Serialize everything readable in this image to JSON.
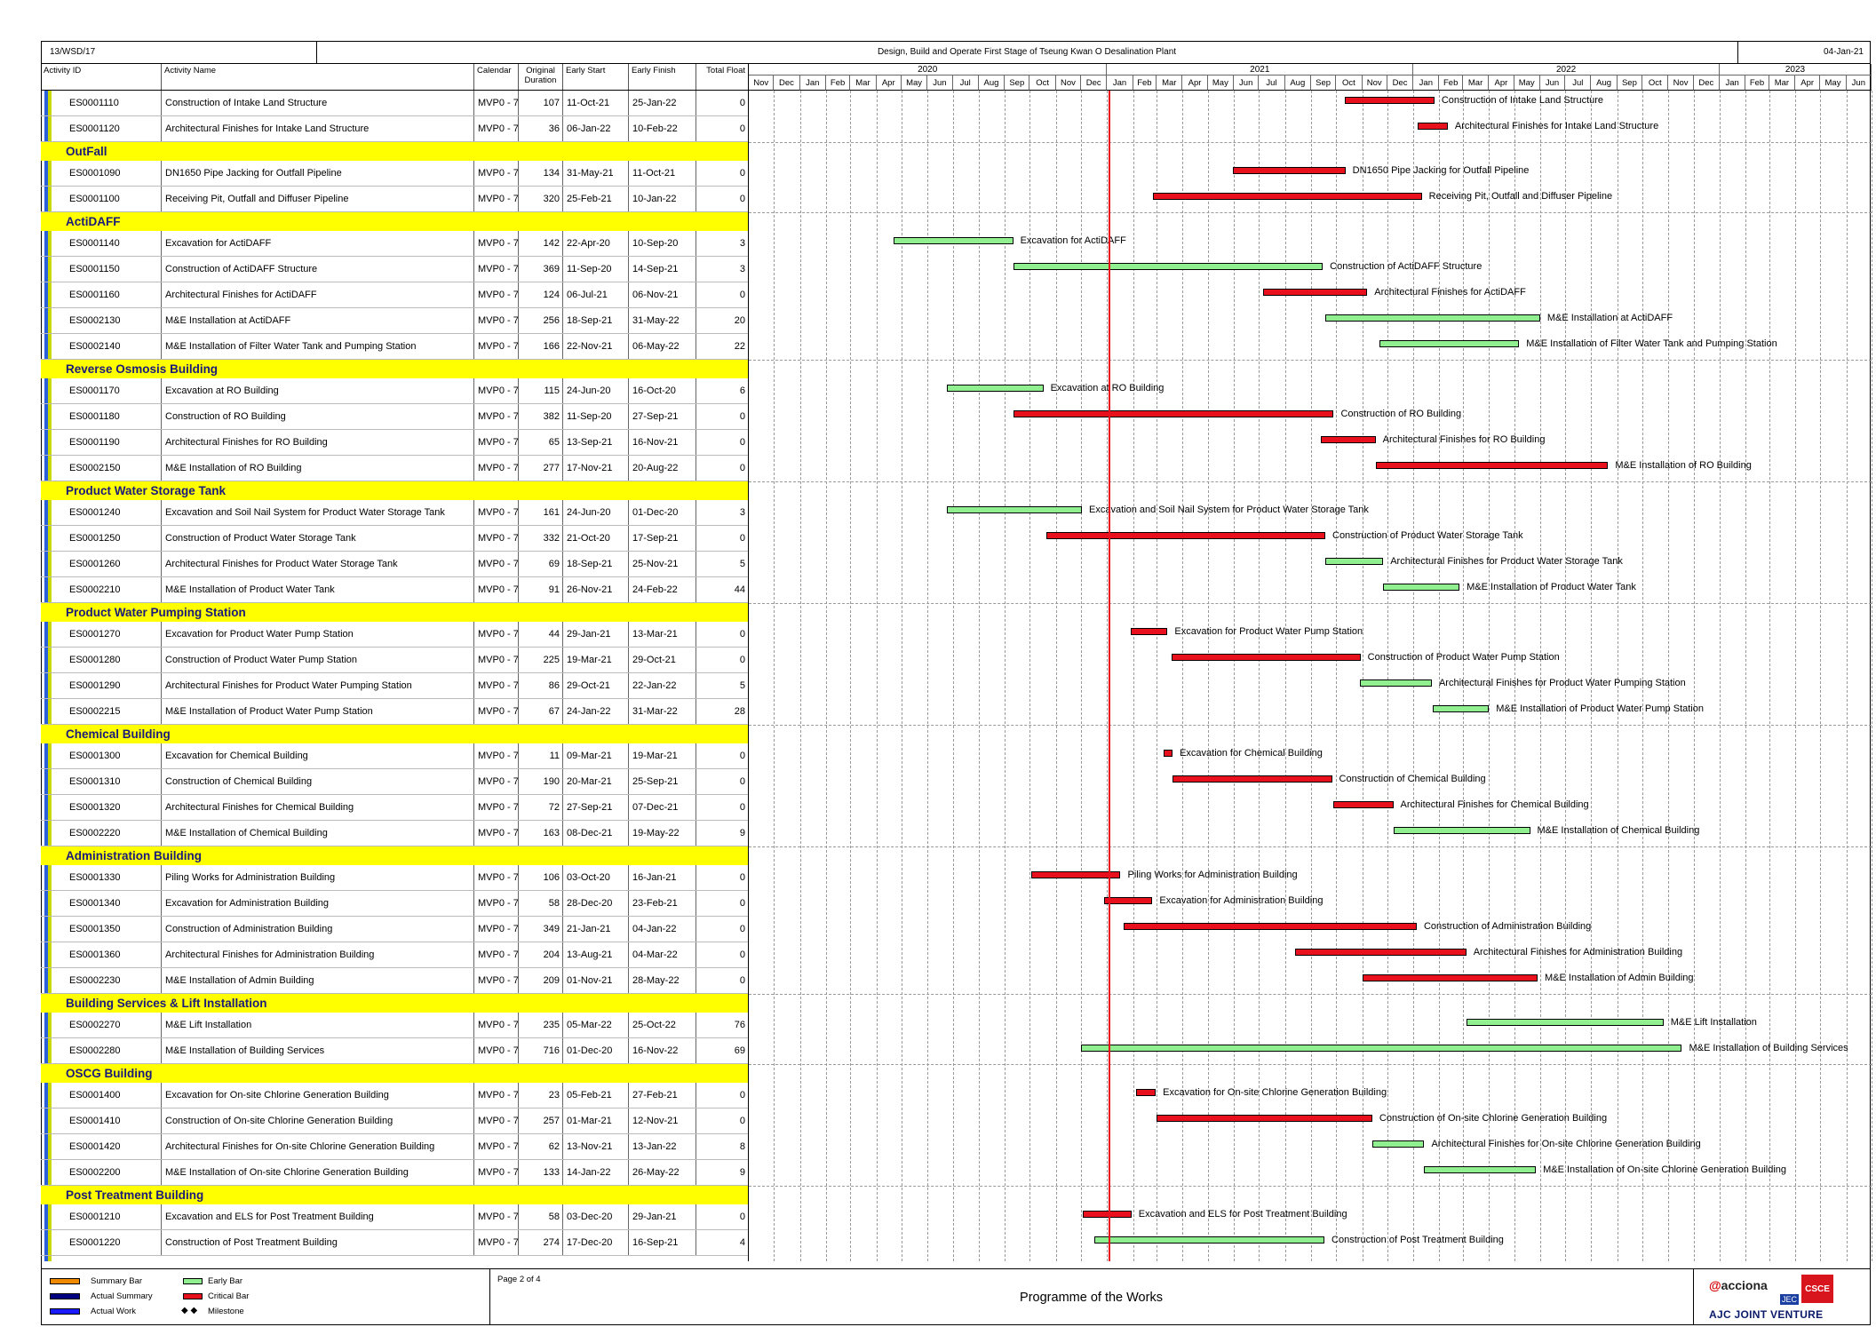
{
  "header": {
    "project_code": "13/WSD/17",
    "project_title": "Design, Build and Operate First Stage of Tseung Kwan O Desalination Plant",
    "data_date": "04-Jan-21"
  },
  "columns": {
    "id": "Activity ID",
    "name": "Activity Name",
    "calendar": "Calendar",
    "duration": "Original Duration",
    "start": "Early Start",
    "finish": "Early Finish",
    "float": "Total Float"
  },
  "timeline": {
    "years": [
      "2020",
      "2021",
      "2022",
      "2023"
    ],
    "months": [
      "Nov",
      "Dec",
      "Jan",
      "Feb",
      "Mar",
      "Apr",
      "May",
      "Jun",
      "Jul",
      "Aug",
      "Sep",
      "Oct",
      "Nov",
      "Dec",
      "Jan",
      "Feb",
      "Mar",
      "Apr",
      "May",
      "Jun",
      "Jul",
      "Aug",
      "Sep",
      "Oct",
      "Nov",
      "Dec",
      "Jan",
      "Feb",
      "Mar",
      "Apr",
      "May",
      "Jun",
      "Jul",
      "Aug",
      "Sep",
      "Oct",
      "Nov",
      "Dec",
      "Jan",
      "Feb",
      "Mar",
      "Apr",
      "May",
      "Jun"
    ]
  },
  "chart_data": {
    "type": "gantt",
    "title": "Programme of the Works",
    "data_date": "04-Jan-21",
    "rows": [
      {
        "kind": "act",
        "id": "ES0001110",
        "name": "Construction of Intake Land Structure",
        "cal": "MVP0 - 7",
        "dur": "107",
        "start": "11-Oct-21",
        "finish": "25-Jan-22",
        "float": "0",
        "bar": "crit"
      },
      {
        "kind": "act",
        "id": "ES0001120",
        "name": "Architectural Finishes for Intake Land Structure",
        "cal": "MVP0 - 7",
        "dur": "36",
        "start": "06-Jan-22",
        "finish": "10-Feb-22",
        "float": "0",
        "bar": "crit"
      },
      {
        "kind": "grp",
        "name": "OutFall"
      },
      {
        "kind": "act",
        "id": "ES0001090",
        "name": "DN1650 Pipe Jacking for Outfall Pipeline",
        "cal": "MVP0 - 7",
        "dur": "134",
        "start": "31-May-21",
        "finish": "11-Oct-21",
        "float": "0",
        "bar": "crit"
      },
      {
        "kind": "act",
        "id": "ES0001100",
        "name": "Receiving Pit, Outfall and Diffuser Pipeline",
        "cal": "MVP0 - 7",
        "dur": "320",
        "start": "25-Feb-21",
        "finish": "10-Jan-22",
        "float": "0",
        "bar": "crit"
      },
      {
        "kind": "grp",
        "name": "ActiDAFF"
      },
      {
        "kind": "act",
        "id": "ES0001140",
        "name": "Excavation for ActiDAFF",
        "cal": "MVP0 - 7",
        "dur": "142",
        "start": "22-Apr-20",
        "finish": "10-Sep-20",
        "float": "3",
        "bar": "early"
      },
      {
        "kind": "act",
        "id": "ES0001150",
        "name": "Construction of ActiDAFF Structure",
        "cal": "MVP0 - 7",
        "dur": "369",
        "start": "11-Sep-20",
        "finish": "14-Sep-21",
        "float": "3",
        "bar": "early"
      },
      {
        "kind": "act",
        "id": "ES0001160",
        "name": "Architectural Finishes for ActiDAFF",
        "cal": "MVP0 - 7",
        "dur": "124",
        "start": "06-Jul-21",
        "finish": "06-Nov-21",
        "float": "0",
        "bar": "crit"
      },
      {
        "kind": "act",
        "id": "ES0002130",
        "name": "M&E Installation at ActiDAFF",
        "cal": "MVP0 - 7",
        "dur": "256",
        "start": "18-Sep-21",
        "finish": "31-May-22",
        "float": "20",
        "bar": "early"
      },
      {
        "kind": "act",
        "id": "ES0002140",
        "name": "M&E Installation of Filter Water Tank and Pumping Station",
        "cal": "MVP0 - 7",
        "dur": "166",
        "start": "22-Nov-21",
        "finish": "06-May-22",
        "float": "22",
        "bar": "early"
      },
      {
        "kind": "grp",
        "name": "Reverse Osmosis Building"
      },
      {
        "kind": "act",
        "id": "ES0001170",
        "name": "Excavation at RO Building",
        "cal": "MVP0 - 7",
        "dur": "115",
        "start": "24-Jun-20",
        "finish": "16-Oct-20",
        "float": "6",
        "bar": "early"
      },
      {
        "kind": "act",
        "id": "ES0001180",
        "name": "Construction of RO Building",
        "cal": "MVP0 - 7",
        "dur": "382",
        "start": "11-Sep-20",
        "finish": "27-Sep-21",
        "float": "0",
        "bar": "crit"
      },
      {
        "kind": "act",
        "id": "ES0001190",
        "name": "Architectural Finishes for RO Building",
        "cal": "MVP0 - 7",
        "dur": "65",
        "start": "13-Sep-21",
        "finish": "16-Nov-21",
        "float": "0",
        "bar": "crit"
      },
      {
        "kind": "act",
        "id": "ES0002150",
        "name": "M&E Installation of RO Building",
        "cal": "MVP0 - 7",
        "dur": "277",
        "start": "17-Nov-21",
        "finish": "20-Aug-22",
        "float": "0",
        "bar": "crit"
      },
      {
        "kind": "grp",
        "name": "Product Water Storage Tank"
      },
      {
        "kind": "act",
        "id": "ES0001240",
        "name": "Excavation and Soil Nail System for Product Water Storage Tank",
        "cal": "MVP0 - 7",
        "dur": "161",
        "start": "24-Jun-20",
        "finish": "01-Dec-20",
        "float": "3",
        "bar": "early"
      },
      {
        "kind": "act",
        "id": "ES0001250",
        "name": "Construction of Product Water Storage Tank",
        "cal": "MVP0 - 7",
        "dur": "332",
        "start": "21-Oct-20",
        "finish": "17-Sep-21",
        "float": "0",
        "bar": "crit"
      },
      {
        "kind": "act",
        "id": "ES0001260",
        "name": "Architectural Finishes for Product Water Storage Tank",
        "cal": "MVP0 - 7",
        "dur": "69",
        "start": "18-Sep-21",
        "finish": "25-Nov-21",
        "float": "5",
        "bar": "early"
      },
      {
        "kind": "act",
        "id": "ES0002210",
        "name": "M&E Installation of Product Water Tank",
        "cal": "MVP0 - 7",
        "dur": "91",
        "start": "26-Nov-21",
        "finish": "24-Feb-22",
        "float": "44",
        "bar": "early"
      },
      {
        "kind": "grp",
        "name": "Product Water Pumping Station"
      },
      {
        "kind": "act",
        "id": "ES0001270",
        "name": "Excavation for Product Water Pump Station",
        "cal": "MVP0 - 7",
        "dur": "44",
        "start": "29-Jan-21",
        "finish": "13-Mar-21",
        "float": "0",
        "bar": "crit"
      },
      {
        "kind": "act",
        "id": "ES0001280",
        "name": "Construction of Product Water Pump Station",
        "cal": "MVP0 - 7",
        "dur": "225",
        "start": "19-Mar-21",
        "finish": "29-Oct-21",
        "float": "0",
        "bar": "crit"
      },
      {
        "kind": "act",
        "id": "ES0001290",
        "name": "Architectural Finishes for Product Water Pumping Station",
        "cal": "MVP0 - 7",
        "dur": "86",
        "start": "29-Oct-21",
        "finish": "22-Jan-22",
        "float": "5",
        "bar": "early"
      },
      {
        "kind": "act",
        "id": "ES0002215",
        "name": "M&E Installation of Product Water Pump Station",
        "cal": "MVP0 - 7",
        "dur": "67",
        "start": "24-Jan-22",
        "finish": "31-Mar-22",
        "float": "28",
        "bar": "early"
      },
      {
        "kind": "grp",
        "name": "Chemical Building"
      },
      {
        "kind": "act",
        "id": "ES0001300",
        "name": "Excavation for Chemical Building",
        "cal": "MVP0 - 7",
        "dur": "11",
        "start": "09-Mar-21",
        "finish": "19-Mar-21",
        "float": "0",
        "bar": "crit"
      },
      {
        "kind": "act",
        "id": "ES0001310",
        "name": "Construction of Chemical Building",
        "cal": "MVP0 - 7",
        "dur": "190",
        "start": "20-Mar-21",
        "finish": "25-Sep-21",
        "float": "0",
        "bar": "crit"
      },
      {
        "kind": "act",
        "id": "ES0001320",
        "name": "Architectural Finishes for Chemical Building",
        "cal": "MVP0 - 7",
        "dur": "72",
        "start": "27-Sep-21",
        "finish": "07-Dec-21",
        "float": "0",
        "bar": "crit"
      },
      {
        "kind": "act",
        "id": "ES0002220",
        "name": "M&E Installation of Chemical Building",
        "cal": "MVP0 - 7",
        "dur": "163",
        "start": "08-Dec-21",
        "finish": "19-May-22",
        "float": "9",
        "bar": "early"
      },
      {
        "kind": "grp",
        "name": "Administration Building"
      },
      {
        "kind": "act",
        "id": "ES0001330",
        "name": "Piling Works for Administration Building",
        "cal": "MVP0 - 7",
        "dur": "106",
        "start": "03-Oct-20",
        "finish": "16-Jan-21",
        "float": "0",
        "bar": "crit"
      },
      {
        "kind": "act",
        "id": "ES0001340",
        "name": "Excavation for Administration Building",
        "cal": "MVP0 - 7",
        "dur": "58",
        "start": "28-Dec-20",
        "finish": "23-Feb-21",
        "float": "0",
        "bar": "crit"
      },
      {
        "kind": "act",
        "id": "ES0001350",
        "name": "Construction of Administration Building",
        "cal": "MVP0 - 7",
        "dur": "349",
        "start": "21-Jan-21",
        "finish": "04-Jan-22",
        "float": "0",
        "bar": "crit"
      },
      {
        "kind": "act",
        "id": "ES0001360",
        "name": "Architectural Finishes for Administration Building",
        "cal": "MVP0 - 7",
        "dur": "204",
        "start": "13-Aug-21",
        "finish": "04-Mar-22",
        "float": "0",
        "bar": "crit"
      },
      {
        "kind": "act",
        "id": "ES0002230",
        "name": "M&E Installation of Admin Building",
        "cal": "MVP0 - 7",
        "dur": "209",
        "start": "01-Nov-21",
        "finish": "28-May-22",
        "float": "0",
        "bar": "crit"
      },
      {
        "kind": "grp",
        "name": "Building Services & Lift Installation"
      },
      {
        "kind": "act",
        "id": "ES0002270",
        "name": "M&E Lift Installation",
        "cal": "MVP0 - 7",
        "dur": "235",
        "start": "05-Mar-22",
        "finish": "25-Oct-22",
        "float": "76",
        "bar": "early"
      },
      {
        "kind": "act",
        "id": "ES0002280",
        "name": "M&E Installation of Building Services",
        "cal": "MVP0 - 7",
        "dur": "716",
        "start": "01-Dec-20",
        "finish": "16-Nov-22",
        "float": "69",
        "bar": "early"
      },
      {
        "kind": "grp",
        "name": "OSCG Building"
      },
      {
        "kind": "act",
        "id": "ES0001400",
        "name": "Excavation for On-site Chlorine Generation Building",
        "cal": "MVP0 - 7",
        "dur": "23",
        "start": "05-Feb-21",
        "finish": "27-Feb-21",
        "float": "0",
        "bar": "crit"
      },
      {
        "kind": "act",
        "id": "ES0001410",
        "name": "Construction of On-site Chlorine Generation Building",
        "cal": "MVP0 - 7",
        "dur": "257",
        "start": "01-Mar-21",
        "finish": "12-Nov-21",
        "float": "0",
        "bar": "crit"
      },
      {
        "kind": "act",
        "id": "ES0001420",
        "name": "Architectural Finishes for On-site Chlorine Generation Building",
        "cal": "MVP0 - 7",
        "dur": "62",
        "start": "13-Nov-21",
        "finish": "13-Jan-22",
        "float": "8",
        "bar": "early"
      },
      {
        "kind": "act",
        "id": "ES0002200",
        "name": "M&E Installation of On-site Chlorine Generation Building",
        "cal": "MVP0 - 7",
        "dur": "133",
        "start": "14-Jan-22",
        "finish": "26-May-22",
        "float": "9",
        "bar": "early"
      },
      {
        "kind": "grp",
        "name": "Post Treatment Building"
      },
      {
        "kind": "act",
        "id": "ES0001210",
        "name": "Excavation and ELS for Post Treatment Building",
        "cal": "MVP0 - 7",
        "dur": "58",
        "start": "03-Dec-20",
        "finish": "29-Jan-21",
        "float": "0",
        "bar": "crit"
      },
      {
        "kind": "act",
        "id": "ES0001220",
        "name": "Construction of Post Treatment Building",
        "cal": "MVP0 - 7",
        "dur": "274",
        "start": "17-Dec-20",
        "finish": "16-Sep-21",
        "float": "4",
        "bar": "early"
      }
    ]
  },
  "footer": {
    "legend": {
      "summary_bar": "Summary Bar",
      "actual_summary": "Actual Summary",
      "actual_work": "Actual Work",
      "early_bar": "Early Bar",
      "critical_bar": "Critical Bar",
      "milestone": "Milestone"
    },
    "page": "Page 2 of 4",
    "title": "Programme of the Works",
    "company": "AJC JOINT VENTURE",
    "brand1": "acciona",
    "brand2": "JEC",
    "brand3": "CSCE"
  },
  "colors": {
    "critical": "#e8101c",
    "early": "#90f090",
    "group_band": "#ffff00",
    "summary": "#f08a00",
    "actual_summary": "#000080",
    "actual_work": "#1a1aff"
  }
}
